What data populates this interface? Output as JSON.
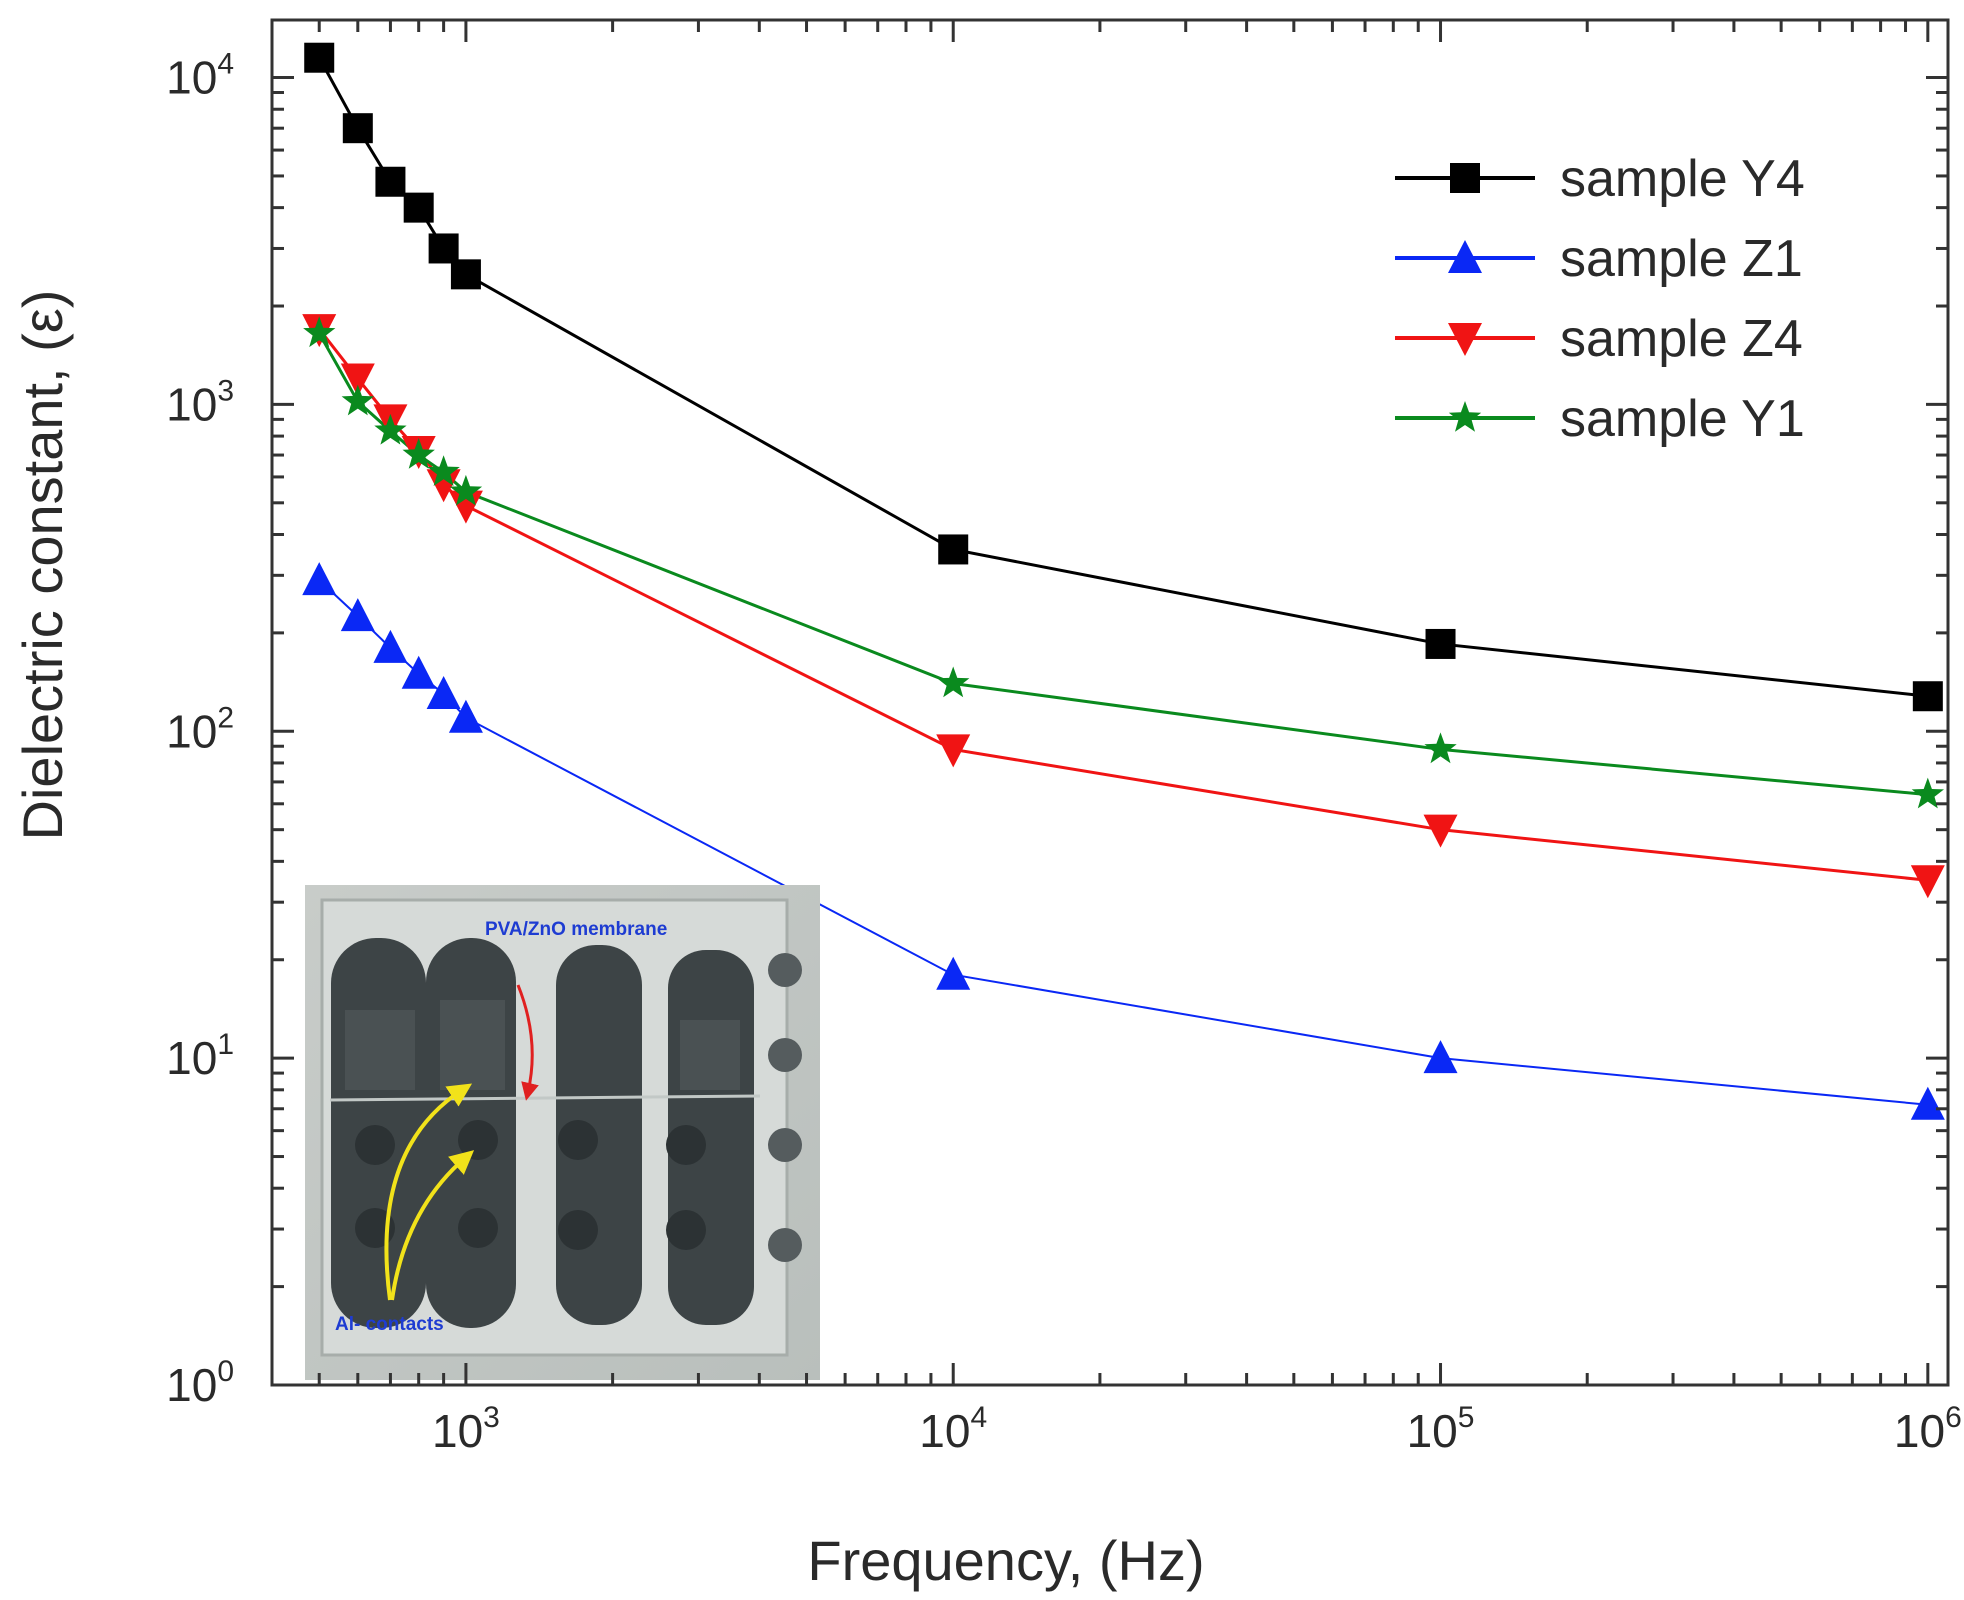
{
  "chart_data": {
    "type": "line",
    "xlabel": "Frequency, (Hz)",
    "ylabel": "Dielectric constant, (ε)",
    "x_scale": "log",
    "y_scale": "log",
    "xlim": [
      400,
      1100000
    ],
    "ylim": [
      1,
      15000
    ],
    "x_ticks": [
      {
        "value": 1000,
        "base": "10",
        "exp": "3"
      },
      {
        "value": 10000,
        "base": "10",
        "exp": "4"
      },
      {
        "value": 100000,
        "base": "10",
        "exp": "5"
      },
      {
        "value": 1000000,
        "base": "10",
        "exp": "6"
      }
    ],
    "y_ticks": [
      {
        "value": 1,
        "base": "10",
        "exp": "0"
      },
      {
        "value": 10,
        "base": "10",
        "exp": "1"
      },
      {
        "value": 100,
        "base": "10",
        "exp": "2"
      },
      {
        "value": 1000,
        "base": "10",
        "exp": "3"
      },
      {
        "value": 10000,
        "base": "10",
        "exp": "4"
      }
    ],
    "legend_position": "top-right",
    "grid": false,
    "x": [
      500,
      600,
      700,
      800,
      900,
      1000,
      10000,
      100000,
      1000000
    ],
    "series": [
      {
        "name": "sample Y4",
        "color": "#000000",
        "marker": "square",
        "values": [
          11500,
          7000,
          4800,
          4000,
          3000,
          2500,
          360,
          185,
          128
        ]
      },
      {
        "name": "sample Z1",
        "color": "#0a28f5",
        "marker": "triangle-up",
        "values": [
          290,
          225,
          180,
          150,
          130,
          110,
          18,
          10,
          7.2
        ]
      },
      {
        "name": "sample Z4",
        "color": "#f01414",
        "marker": "triangle-down",
        "values": [
          1700,
          1200,
          900,
          720,
          570,
          490,
          88,
          50,
          35
        ]
      },
      {
        "name": "sample Y1",
        "color": "#0a8a1e",
        "marker": "star",
        "values": [
          1650,
          1020,
          830,
          700,
          620,
          540,
          140,
          88,
          64
        ]
      }
    ]
  },
  "inset": {
    "label_membrane": "PVA/ZnO membrane",
    "label_contacts": "Al- contacts"
  }
}
